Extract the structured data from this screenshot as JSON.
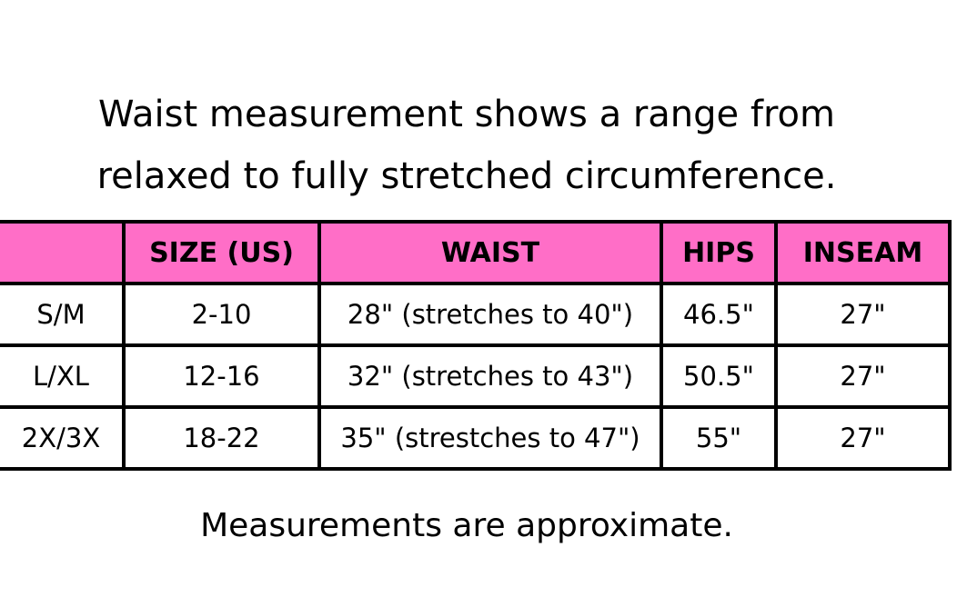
{
  "heading": {
    "lines": [
      "Waist measurement shows a range from",
      "relaxed to fully stretched circumference."
    ]
  },
  "table": {
    "headers": [
      "SIZE (US)",
      "WAIST",
      "HIPS",
      "INSEAM"
    ],
    "rows": [
      [
        "S/M",
        "2-10",
        "28\" (stretches to 40\")",
        "46.5\"",
        "27\""
      ],
      [
        "L/XL",
        "12-16",
        "32\" (stretches to 43\")",
        "50.5\"",
        "27\""
      ],
      [
        "2X/3X",
        "18-22",
        "35\" (strestches to 47\")",
        "55\"",
        "27\""
      ]
    ]
  },
  "footer": {
    "note": "Measurements are approximate."
  }
}
